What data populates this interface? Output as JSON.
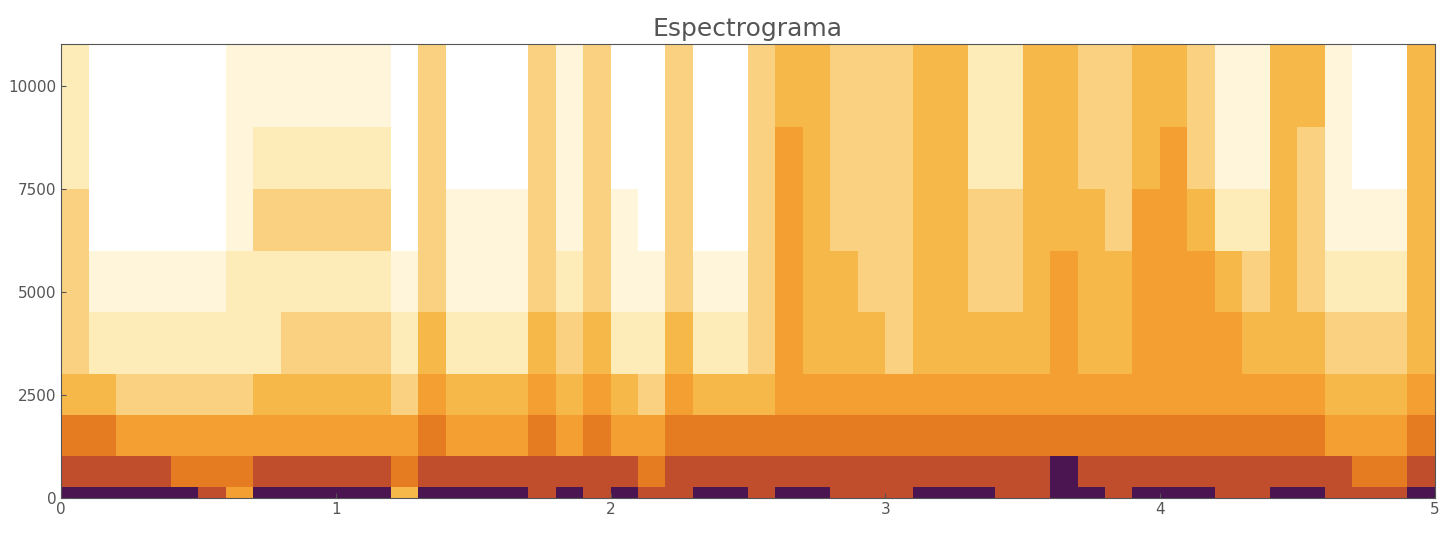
{
  "chart_data": {
    "type": "heatmap",
    "title": "Espectrograma",
    "x": [
      0,
      0.1,
      0.2,
      0.3,
      0.4,
      0.5,
      0.6,
      0.7,
      0.8,
      0.9,
      1,
      1.1,
      1.2,
      1.3,
      1.4,
      1.5,
      1.6,
      1.7,
      1.8,
      1.9,
      2,
      2.1,
      2.2,
      2.3,
      2.4,
      2.5,
      2.6,
      2.7,
      2.8,
      2.9,
      3,
      3.1,
      3.2,
      3.3,
      3.4,
      3.5,
      3.6,
      3.7,
      3.8,
      3.9,
      4,
      4.1,
      4.2,
      4.3,
      4.4,
      4.5,
      4.6,
      4.7,
      4.8,
      4.9,
      5
    ],
    "y": [
      0,
      250,
      1000,
      2000,
      3000,
      4500,
      6000,
      7500,
      9000,
      11025
    ],
    "cells": [
      [
        8,
        8,
        8,
        8,
        8,
        7,
        5,
        8,
        8,
        8,
        8,
        8,
        4,
        8,
        8,
        8,
        8,
        7,
        8,
        7,
        8,
        7,
        7,
        8,
        8,
        7,
        8,
        8,
        7,
        7,
        7,
        8,
        8,
        8,
        7,
        7,
        8,
        8,
        7,
        8,
        8,
        8,
        7,
        7,
        8,
        8,
        7,
        7,
        7,
        8
      ],
      [
        7,
        7,
        7,
        7,
        6,
        6,
        6,
        7,
        7,
        7,
        7,
        7,
        6,
        7,
        7,
        7,
        7,
        7,
        7,
        7,
        7,
        6,
        7,
        7,
        7,
        7,
        7,
        7,
        7,
        7,
        7,
        7,
        7,
        7,
        7,
        7,
        8,
        7,
        7,
        7,
        7,
        7,
        7,
        7,
        7,
        7,
        7,
        6,
        6,
        7
      ],
      [
        6,
        6,
        5,
        5,
        5,
        5,
        5,
        5,
        5,
        5,
        5,
        5,
        5,
        6,
        5,
        5,
        5,
        6,
        5,
        6,
        5,
        5,
        6,
        6,
        6,
        6,
        6,
        6,
        6,
        6,
        6,
        6,
        6,
        6,
        6,
        6,
        6,
        6,
        6,
        6,
        6,
        6,
        6,
        6,
        6,
        6,
        5,
        5,
        5,
        6
      ],
      [
        4,
        4,
        3,
        3,
        3,
        3,
        3,
        4,
        4,
        4,
        4,
        4,
        3,
        5,
        4,
        4,
        4,
        5,
        4,
        5,
        4,
        3,
        5,
        4,
        4,
        4,
        5,
        5,
        5,
        5,
        5,
        5,
        5,
        5,
        5,
        5,
        5,
        5,
        5,
        5,
        5,
        5,
        5,
        5,
        5,
        5,
        4,
        4,
        4,
        5
      ],
      [
        3,
        2,
        2,
        2,
        2,
        2,
        2,
        2,
        3,
        3,
        3,
        3,
        2,
        4,
        2,
        2,
        2,
        4,
        3,
        4,
        2,
        2,
        4,
        2,
        2,
        3,
        5,
        4,
        4,
        4,
        3,
        4,
        4,
        4,
        4,
        4,
        5,
        4,
        4,
        5,
        5,
        5,
        5,
        4,
        4,
        4,
        3,
        3,
        3,
        4
      ],
      [
        3,
        1,
        1,
        1,
        1,
        1,
        2,
        2,
        2,
        2,
        2,
        2,
        1,
        3,
        1,
        1,
        1,
        3,
        2,
        3,
        1,
        1,
        3,
        1,
        1,
        3,
        5,
        4,
        4,
        3,
        3,
        4,
        4,
        3,
        3,
        4,
        5,
        4,
        4,
        5,
        5,
        5,
        4,
        3,
        4,
        3,
        2,
        2,
        2,
        4
      ],
      [
        3,
        0,
        0,
        0,
        0,
        0,
        1,
        3,
        3,
        3,
        3,
        3,
        0,
        3,
        1,
        1,
        1,
        3,
        1,
        3,
        1,
        0,
        3,
        0,
        0,
        3,
        5,
        4,
        3,
        3,
        3,
        4,
        4,
        3,
        3,
        4,
        4,
        4,
        3,
        5,
        5,
        4,
        2,
        2,
        4,
        3,
        1,
        1,
        1,
        4
      ],
      [
        2,
        0,
        0,
        0,
        0,
        0,
        1,
        2,
        2,
        2,
        2,
        2,
        0,
        3,
        0,
        0,
        0,
        3,
        1,
        3,
        0,
        0,
        3,
        0,
        0,
        3,
        5,
        4,
        3,
        3,
        3,
        4,
        4,
        2,
        2,
        4,
        4,
        3,
        3,
        4,
        5,
        3,
        1,
        1,
        4,
        3,
        1,
        0,
        0,
        4
      ],
      [
        2,
        0,
        0,
        0,
        0,
        0,
        1,
        1,
        1,
        1,
        1,
        1,
        0,
        3,
        0,
        0,
        0,
        3,
        1,
        3,
        0,
        0,
        3,
        0,
        0,
        3,
        4,
        4,
        3,
        3,
        3,
        4,
        4,
        2,
        2,
        4,
        4,
        3,
        3,
        4,
        4,
        3,
        1,
        1,
        4,
        4,
        1,
        0,
        0,
        4
      ]
    ],
    "xlim": [
      0,
      5
    ],
    "xticks": [
      0,
      1,
      2,
      3,
      4,
      5
    ],
    "ylim": [
      0,
      11025
    ],
    "yticks": [
      0,
      2500,
      5000,
      7500,
      10000
    ],
    "grid": false
  }
}
